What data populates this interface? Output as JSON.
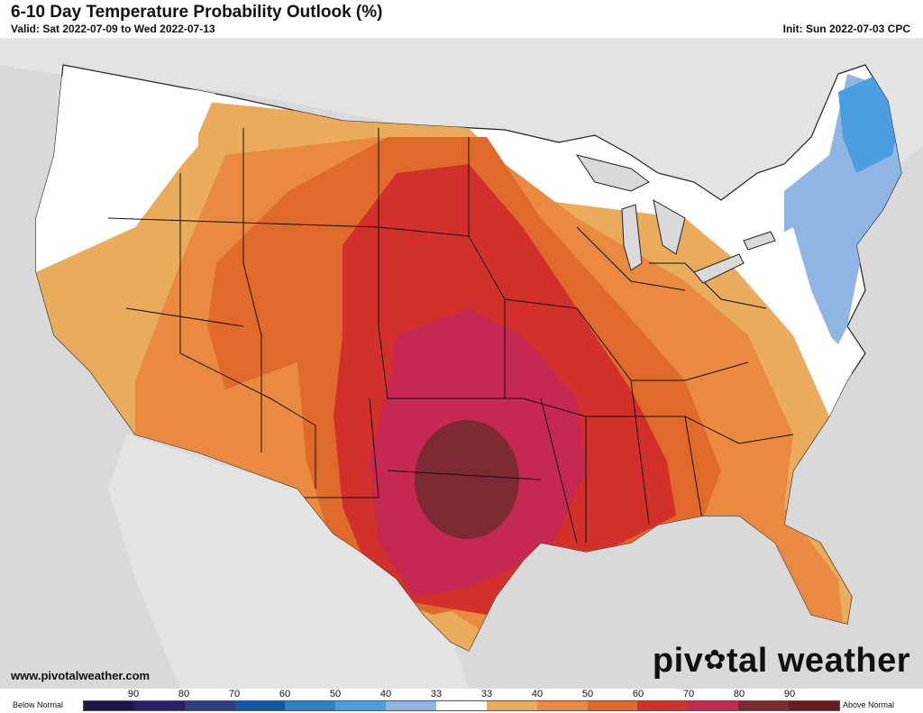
{
  "header": {
    "title": "6-10 Day Temperature Probability Outlook (%)",
    "valid": "Valid: Sat 2022-07-09 to Wed 2022-07-13",
    "init": "Init: Sun 2022-07-03 CPC"
  },
  "footer": {
    "website": "www.pivotalweather.com",
    "brand_left": "piv",
    "brand_gear": "✿",
    "brand_right": "tal weather"
  },
  "legend": {
    "below_label": "Below Normal",
    "above_label": "Above Normal",
    "ticks": [
      "90",
      "80",
      "70",
      "60",
      "50",
      "40",
      "33",
      "33",
      "40",
      "50",
      "60",
      "70",
      "80",
      "90"
    ],
    "colors": [
      "#1c1747",
      "#2b1f66",
      "#2d3f80",
      "#0e5aa8",
      "#2f7fc4",
      "#4a9ee0",
      "#8fb6e2",
      "#ffffff",
      "#e8ac5c",
      "#ea8a40",
      "#e06a2c",
      "#d2302a",
      "#c52850",
      "#7e2a35",
      "#6b1c22"
    ]
  },
  "map": {
    "region": "Contiguous United States",
    "background_color": "#d9d9d9",
    "land_color": "#ffffff",
    "categories": [
      {
        "label": "Below 33-40%",
        "color": "#8fb6e2"
      },
      {
        "label": "Below 40-50%",
        "color": "#4a9ee0"
      },
      {
        "label": "Near normal",
        "color": "#ffffff"
      },
      {
        "label": "Above 33-40%",
        "color": "#e8ac5c"
      },
      {
        "label": "Above 40-50%",
        "color": "#ea8a40"
      },
      {
        "label": "Above 50-60%",
        "color": "#e06a2c"
      },
      {
        "label": "Above 60-70%",
        "color": "#d2302a"
      },
      {
        "label": "Above 70-80%",
        "color": "#c52850"
      },
      {
        "label": "Above 80-90%",
        "color": "#7e2a35"
      }
    ]
  }
}
